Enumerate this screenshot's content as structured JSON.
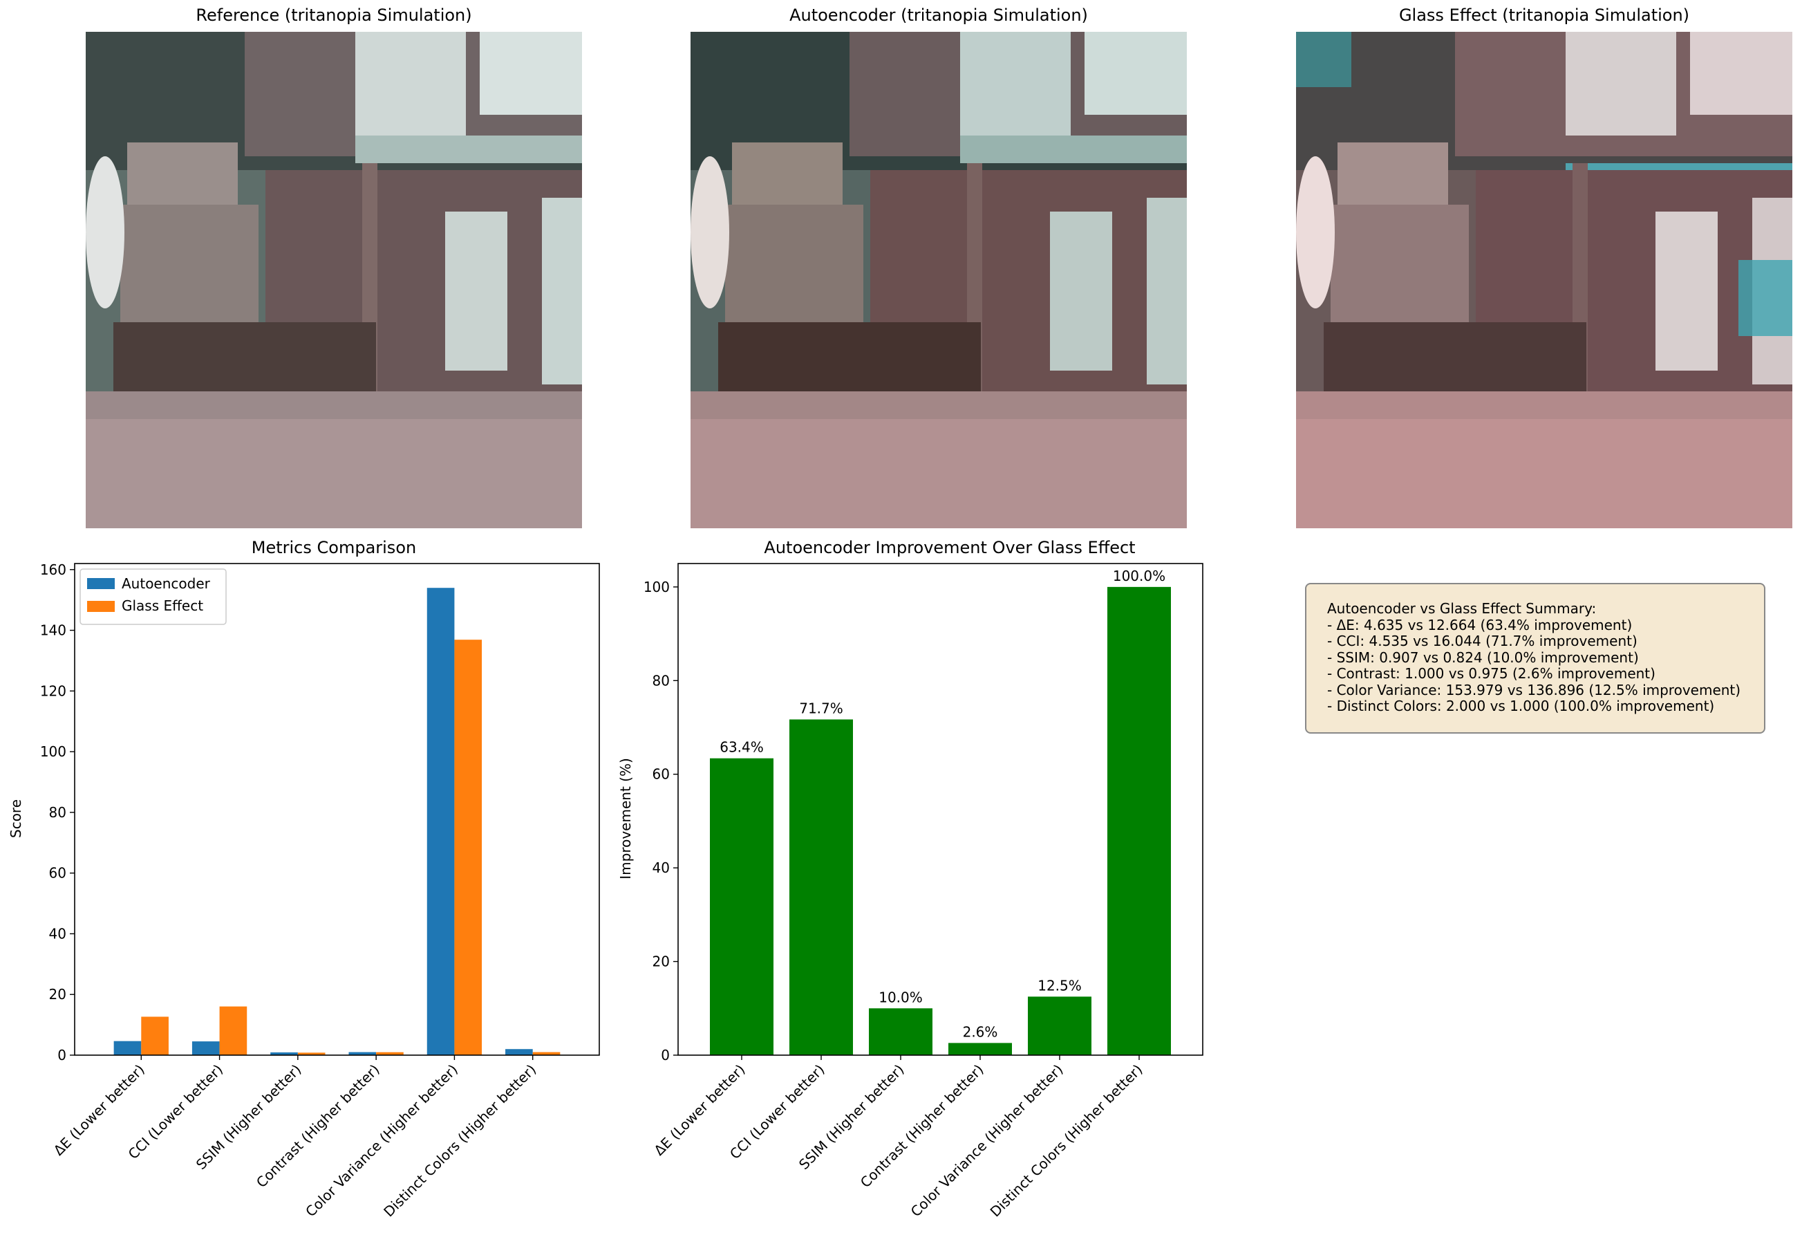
{
  "panels": {
    "reference_title": "Reference (tritanopia Simulation)",
    "autoencoder_title": "Autoencoder (tritanopia Simulation)",
    "glass_title": "Glass Effect (tritanopia Simulation)"
  },
  "colors": {
    "autoencoder": "#1f77b4",
    "glass_effect": "#ff7f0e",
    "improvement": "#008000",
    "summary_bg": "#f5e9d2"
  },
  "chart_data": [
    {
      "type": "bar",
      "title": "Metrics Comparison",
      "xlabel": "",
      "ylabel": "Score",
      "ylim": [
        0,
        162
      ],
      "yticks": [
        0,
        20,
        40,
        60,
        80,
        100,
        120,
        140,
        160
      ],
      "grid": false,
      "legend_position": "top-left",
      "categories": [
        "ΔE (Lower better)",
        "CCI (Lower better)",
        "SSIM (Higher better)",
        "Contrast (Higher better)",
        "Color Variance (Higher better)",
        "Distinct Colors (Higher better)"
      ],
      "series": [
        {
          "name": "Autoencoder",
          "values": [
            4.635,
            4.535,
            0.907,
            1.0,
            153.979,
            2.0
          ]
        },
        {
          "name": "Glass Effect",
          "values": [
            12.664,
            16.044,
            0.824,
            0.975,
            136.896,
            1.0
          ]
        }
      ]
    },
    {
      "type": "bar",
      "title": "Autoencoder Improvement Over Glass Effect",
      "xlabel": "",
      "ylabel": "Improvement (%)",
      "ylim": [
        0,
        105
      ],
      "yticks": [
        0,
        20,
        40,
        60,
        80,
        100
      ],
      "grid": false,
      "categories": [
        "ΔE (Lower better)",
        "CCI (Lower better)",
        "SSIM (Higher better)",
        "Contrast (Higher better)",
        "Color Variance (Higher better)",
        "Distinct Colors (Higher better)"
      ],
      "values": [
        63.4,
        71.7,
        10.0,
        2.6,
        12.5,
        100.0
      ],
      "data_labels": [
        "63.4%",
        "71.7%",
        "10.0%",
        "2.6%",
        "12.5%",
        "100.0%"
      ]
    }
  ],
  "summary": {
    "lines": [
      "Autoencoder vs Glass Effect Summary:",
      "- ΔE: 4.635 vs 12.664 (63.4% improvement)",
      "- CCI: 4.535 vs 16.044 (71.7% improvement)",
      "- SSIM: 0.907 vs 0.824 (10.0% improvement)",
      "- Contrast: 1.000 vs 0.975 (2.6% improvement)",
      "- Color Variance: 153.979 vs 136.896 (12.5% improvement)",
      "- Distinct Colors: 2.000 vs 1.000 (100.0% improvement)"
    ]
  }
}
